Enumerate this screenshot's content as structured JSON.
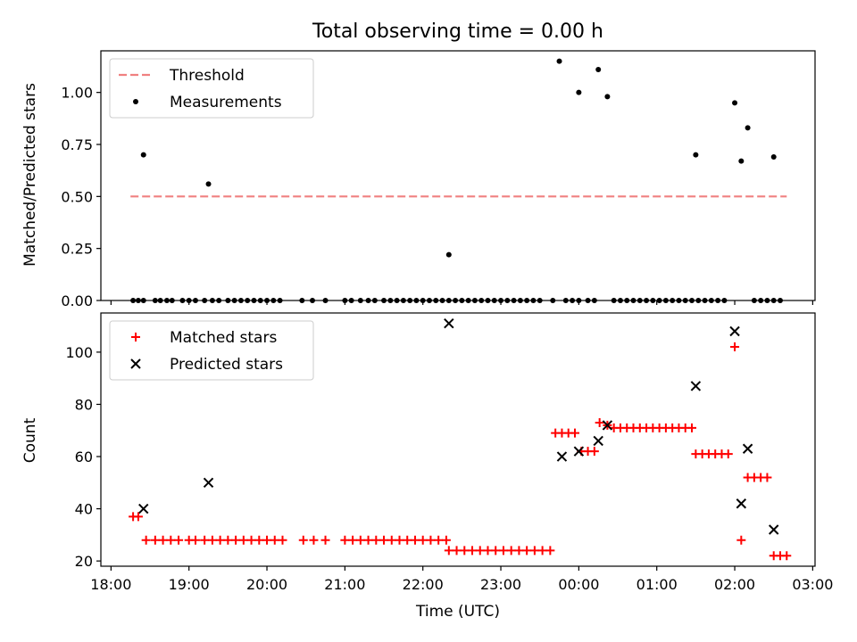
{
  "figure": {
    "title": "Total observing time = 0.00 h",
    "xlabel": "Time (UTC)"
  },
  "chart_data": [
    {
      "type": "scatter",
      "ylabel": "Matched/Predicted stars",
      "xlim": [
        "18:00",
        "03:00"
      ],
      "ylim": [
        0,
        1.2
      ],
      "x_tick_labels": [
        "18:00",
        "19:00",
        "20:00",
        "21:00",
        "22:00",
        "23:00",
        "00:00",
        "01:00",
        "02:00",
        "03:00"
      ],
      "y_tick_values": [
        0.0,
        0.25,
        0.5,
        0.75,
        1.0
      ],
      "y_tick_labels": [
        "0.00",
        "0.25",
        "0.50",
        "0.75",
        "1.00"
      ],
      "legend_position": "upper-left",
      "series": [
        {
          "name": "Threshold",
          "style": "dashed-line",
          "color": "#f08080",
          "points": [
            [
              "18:15",
              0.5
            ],
            [
              "02:40",
              0.5
            ]
          ]
        },
        {
          "name": "Measurements",
          "style": "dot",
          "color": "#000000",
          "points": [
            [
              "18:17",
              0.0
            ],
            [
              "18:21",
              0.0
            ],
            [
              "18:25",
              0.0
            ],
            [
              "18:34",
              0.0
            ],
            [
              "18:38",
              0.0
            ],
            [
              "18:43",
              0.0
            ],
            [
              "18:47",
              0.0
            ],
            [
              "18:55",
              0.0
            ],
            [
              "18:25",
              0.7
            ],
            [
              "19:15",
              0.56
            ],
            [
              "22:20",
              0.22
            ],
            [
              "19:00",
              0.0
            ],
            [
              "19:05",
              0.0
            ],
            [
              "19:12",
              0.0
            ],
            [
              "19:18",
              0.0
            ],
            [
              "19:23",
              0.0
            ],
            [
              "19:30",
              0.0
            ],
            [
              "19:35",
              0.0
            ],
            [
              "19:40",
              0.0
            ],
            [
              "19:45",
              0.0
            ],
            [
              "19:50",
              0.0
            ],
            [
              "19:55",
              0.0
            ],
            [
              "20:00",
              0.0
            ],
            [
              "20:05",
              0.0
            ],
            [
              "20:10",
              0.0
            ],
            [
              "20:27",
              0.0
            ],
            [
              "20:35",
              0.0
            ],
            [
              "20:45",
              0.0
            ],
            [
              "21:00",
              0.0
            ],
            [
              "21:05",
              0.0
            ],
            [
              "21:12",
              0.0
            ],
            [
              "21:18",
              0.0
            ],
            [
              "21:23",
              0.0
            ],
            [
              "21:30",
              0.0
            ],
            [
              "21:35",
              0.0
            ],
            [
              "21:40",
              0.0
            ],
            [
              "21:45",
              0.0
            ],
            [
              "21:50",
              0.0
            ],
            [
              "21:55",
              0.0
            ],
            [
              "22:00",
              0.0
            ],
            [
              "22:05",
              0.0
            ],
            [
              "22:10",
              0.0
            ],
            [
              "22:15",
              0.0
            ],
            [
              "22:20",
              0.0
            ],
            [
              "22:25",
              0.0
            ],
            [
              "22:30",
              0.0
            ],
            [
              "22:35",
              0.0
            ],
            [
              "22:40",
              0.0
            ],
            [
              "22:45",
              0.0
            ],
            [
              "22:50",
              0.0
            ],
            [
              "22:55",
              0.0
            ],
            [
              "23:00",
              0.0
            ],
            [
              "23:05",
              0.0
            ],
            [
              "23:10",
              0.0
            ],
            [
              "23:15",
              0.0
            ],
            [
              "23:20",
              0.0
            ],
            [
              "23:25",
              0.0
            ],
            [
              "23:30",
              0.0
            ],
            [
              "23:40",
              0.0
            ],
            [
              "23:50",
              0.0
            ],
            [
              "23:55",
              0.0
            ],
            [
              "00:00",
              0.0
            ],
            [
              "00:07",
              0.0
            ],
            [
              "00:12",
              0.0
            ],
            [
              "23:45",
              1.15
            ],
            [
              "00:00",
              1.0
            ],
            [
              "00:15",
              1.11
            ],
            [
              "00:22",
              0.98
            ],
            [
              "00:27",
              0.0
            ],
            [
              "00:32",
              0.0
            ],
            [
              "00:37",
              0.0
            ],
            [
              "00:42",
              0.0
            ],
            [
              "00:47",
              0.0
            ],
            [
              "00:52",
              0.0
            ],
            [
              "00:57",
              0.0
            ],
            [
              "01:02",
              0.0
            ],
            [
              "01:07",
              0.0
            ],
            [
              "01:12",
              0.0
            ],
            [
              "01:17",
              0.0
            ],
            [
              "01:22",
              0.0
            ],
            [
              "01:27",
              0.0
            ],
            [
              "01:32",
              0.0
            ],
            [
              "01:37",
              0.0
            ],
            [
              "01:42",
              0.0
            ],
            [
              "01:47",
              0.0
            ],
            [
              "01:52",
              0.0
            ],
            [
              "01:30",
              0.7
            ],
            [
              "02:00",
              0.95
            ],
            [
              "02:05",
              0.67
            ],
            [
              "02:10",
              0.83
            ],
            [
              "02:30",
              0.69
            ],
            [
              "02:15",
              0.0
            ],
            [
              "02:20",
              0.0
            ],
            [
              "02:25",
              0.0
            ],
            [
              "02:30",
              0.0
            ],
            [
              "02:35",
              0.0
            ]
          ]
        }
      ]
    },
    {
      "type": "scatter",
      "ylabel": "Count",
      "xlim": [
        "18:00",
        "03:00"
      ],
      "ylim": [
        18,
        115
      ],
      "x_tick_labels": [
        "18:00",
        "19:00",
        "20:00",
        "21:00",
        "22:00",
        "23:00",
        "00:00",
        "01:00",
        "02:00",
        "03:00"
      ],
      "y_tick_values": [
        20,
        40,
        60,
        80,
        100
      ],
      "y_tick_labels": [
        "20",
        "40",
        "60",
        "80",
        "100"
      ],
      "legend_position": "upper-left",
      "series": [
        {
          "name": "Matched stars",
          "style": "plus",
          "color": "#ff0000",
          "points": [
            [
              "18:17",
              37
            ],
            [
              "18:21",
              37
            ],
            [
              "18:27",
              28
            ],
            [
              "18:34",
              28
            ],
            [
              "18:40",
              28
            ],
            [
              "18:46",
              28
            ],
            [
              "18:52",
              28
            ],
            [
              "19:00",
              28
            ],
            [
              "19:05",
              28
            ],
            [
              "19:12",
              28
            ],
            [
              "19:18",
              28
            ],
            [
              "19:24",
              28
            ],
            [
              "19:30",
              28
            ],
            [
              "19:36",
              28
            ],
            [
              "19:42",
              28
            ],
            [
              "19:48",
              28
            ],
            [
              "19:54",
              28
            ],
            [
              "20:00",
              28
            ],
            [
              "20:06",
              28
            ],
            [
              "20:12",
              28
            ],
            [
              "20:28",
              28
            ],
            [
              "20:36",
              28
            ],
            [
              "20:45",
              28
            ],
            [
              "21:00",
              28
            ],
            [
              "21:06",
              28
            ],
            [
              "21:12",
              28
            ],
            [
              "21:18",
              28
            ],
            [
              "21:24",
              28
            ],
            [
              "21:30",
              28
            ],
            [
              "21:36",
              28
            ],
            [
              "21:42",
              28
            ],
            [
              "21:48",
              28
            ],
            [
              "21:54",
              28
            ],
            [
              "22:00",
              28
            ],
            [
              "22:06",
              28
            ],
            [
              "22:12",
              28
            ],
            [
              "22:18",
              28
            ],
            [
              "22:20",
              24
            ],
            [
              "22:26",
              24
            ],
            [
              "22:32",
              24
            ],
            [
              "22:38",
              24
            ],
            [
              "22:44",
              24
            ],
            [
              "22:50",
              24
            ],
            [
              "22:56",
              24
            ],
            [
              "23:02",
              24
            ],
            [
              "23:08",
              24
            ],
            [
              "23:14",
              24
            ],
            [
              "23:20",
              24
            ],
            [
              "23:26",
              24
            ],
            [
              "23:32",
              24
            ],
            [
              "23:38",
              24
            ],
            [
              "23:42",
              69
            ],
            [
              "23:47",
              69
            ],
            [
              "23:52",
              69
            ],
            [
              "23:57",
              69
            ],
            [
              "00:02",
              62
            ],
            [
              "00:07",
              62
            ],
            [
              "00:12",
              62
            ],
            [
              "00:16",
              73
            ],
            [
              "00:22",
              72
            ],
            [
              "00:27",
              71
            ],
            [
              "00:32",
              71
            ],
            [
              "00:37",
              71
            ],
            [
              "00:42",
              71
            ],
            [
              "00:47",
              71
            ],
            [
              "00:52",
              71
            ],
            [
              "00:57",
              71
            ],
            [
              "01:02",
              71
            ],
            [
              "01:07",
              71
            ],
            [
              "01:12",
              71
            ],
            [
              "01:17",
              71
            ],
            [
              "01:22",
              71
            ],
            [
              "01:27",
              71
            ],
            [
              "01:30",
              61
            ],
            [
              "01:35",
              61
            ],
            [
              "01:40",
              61
            ],
            [
              "01:45",
              61
            ],
            [
              "01:50",
              61
            ],
            [
              "01:55",
              61
            ],
            [
              "02:00",
              102
            ],
            [
              "02:05",
              28
            ],
            [
              "02:10",
              52
            ],
            [
              "02:15",
              52
            ],
            [
              "02:20",
              52
            ],
            [
              "02:25",
              52
            ],
            [
              "02:30",
              22
            ],
            [
              "02:35",
              22
            ],
            [
              "02:40",
              22
            ]
          ]
        },
        {
          "name": "Predicted stars",
          "style": "cross",
          "color": "#000000",
          "points": [
            [
              "18:25",
              40
            ],
            [
              "19:15",
              50
            ],
            [
              "22:20",
              111
            ],
            [
              "23:47",
              60
            ],
            [
              "00:00",
              62
            ],
            [
              "00:15",
              66
            ],
            [
              "00:22",
              72
            ],
            [
              "01:30",
              87
            ],
            [
              "02:00",
              108
            ],
            [
              "02:05",
              42
            ],
            [
              "02:10",
              63
            ],
            [
              "02:30",
              32
            ]
          ]
        }
      ]
    }
  ]
}
